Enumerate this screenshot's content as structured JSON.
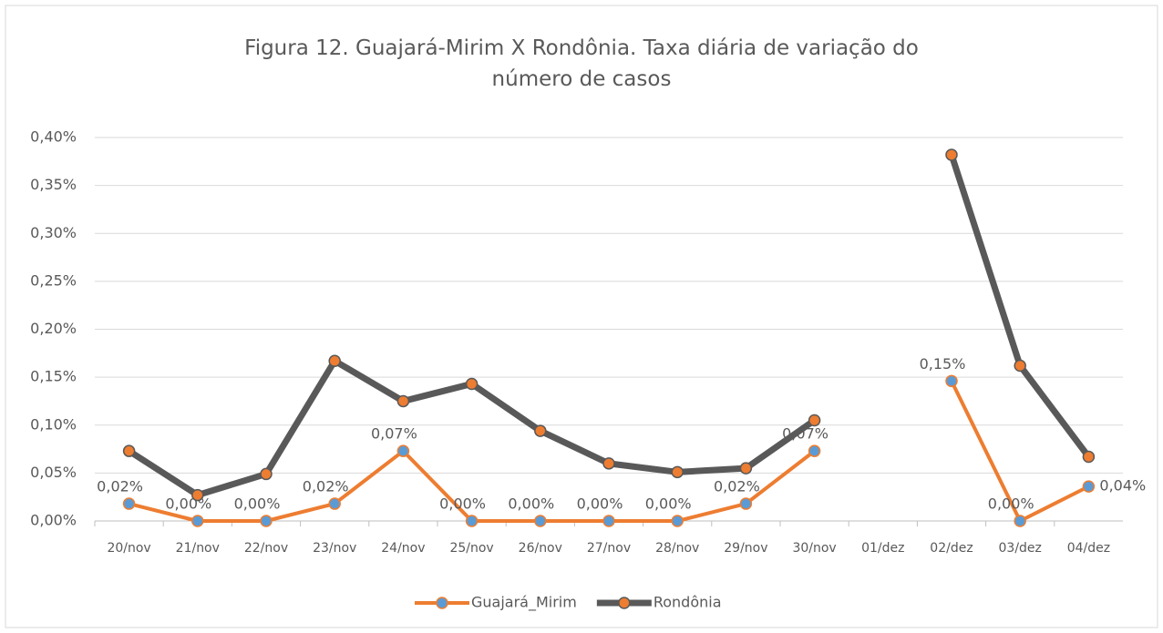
{
  "chart_data": {
    "type": "line",
    "title": "Figura 12. Guajará-Mirim X Rondônia. Taxa diária de variação do número de casos",
    "categories": [
      "20/nov",
      "21/nov",
      "22/nov",
      "23/nov",
      "24/nov",
      "25/nov",
      "26/nov",
      "27/nov",
      "28/nov",
      "29/nov",
      "30/nov",
      "01/dez",
      "02/dez",
      "03/dez",
      "04/dez"
    ],
    "series": [
      {
        "name": "Guajará_Mirim",
        "color": "#ed7d31",
        "marker_color": "#5b9bd5",
        "values": [
          0.018,
          0,
          0,
          0.018,
          0.073,
          0,
          0,
          0,
          0,
          0.018,
          0.073,
          null,
          0.146,
          0,
          0.036
        ],
        "value_labels": [
          "0,02%",
          "0,00%",
          "0,00%",
          "0,02%",
          "0,07%",
          "0,00%",
          "0,00%",
          "0,00%",
          "0,00%",
          "0,02%",
          "0,07%",
          null,
          "0,15%",
          "0,00%",
          "0,04%"
        ]
      },
      {
        "name": "Rondônia",
        "color": "#595959",
        "marker_color": "#ed7d31",
        "values": [
          0.073,
          0.027,
          0.049,
          0.167,
          0.125,
          0.143,
          0.094,
          0.06,
          0.051,
          0.055,
          0.105,
          null,
          0.382,
          0.162,
          0.067
        ]
      }
    ],
    "ylim": [
      0,
      0.4
    ],
    "yticks": [
      {
        "value": 0,
        "label": "0,00%"
      },
      {
        "value": 0.05,
        "label": "0,05%"
      },
      {
        "value": 0.1,
        "label": "0,10%"
      },
      {
        "value": 0.15,
        "label": "0,15%"
      },
      {
        "value": 0.2,
        "label": "0,20%"
      },
      {
        "value": 0.25,
        "label": "0,25%"
      },
      {
        "value": 0.3,
        "label": "0,30%"
      },
      {
        "value": 0.35,
        "label": "0,35%"
      },
      {
        "value": 0.4,
        "label": "0,40%"
      }
    ],
    "grid": true,
    "legend": "bottom"
  }
}
